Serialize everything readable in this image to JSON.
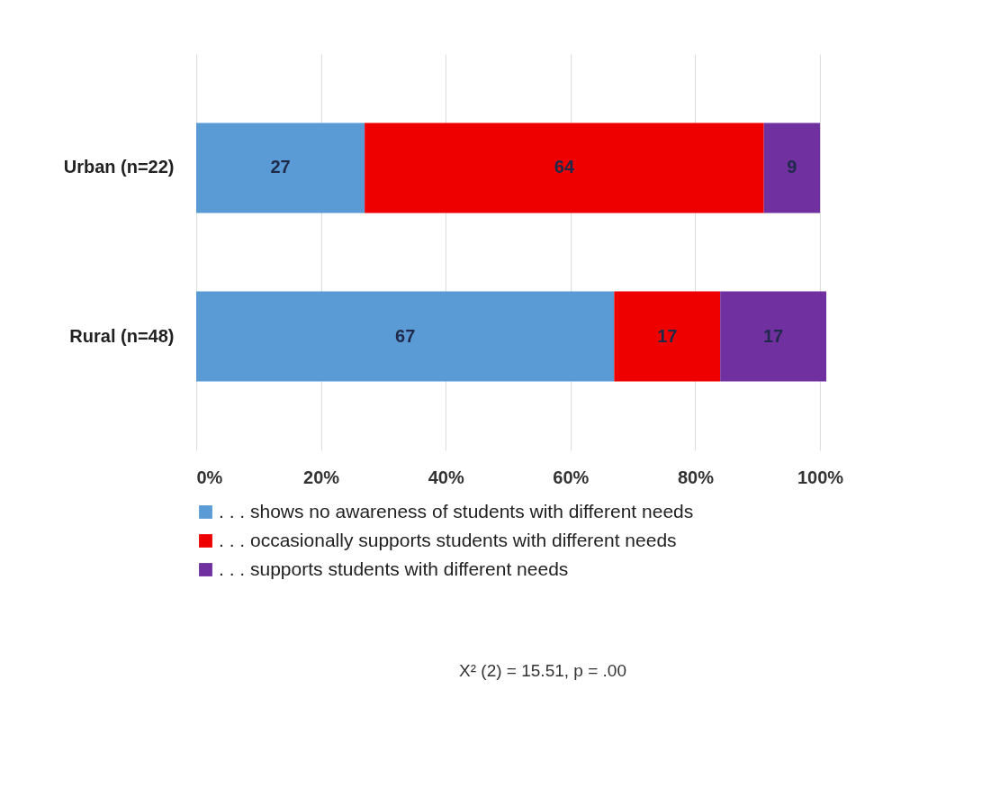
{
  "chart_data": {
    "type": "bar",
    "orientation": "horizontal",
    "stacked": true,
    "categories": [
      "Urban (n=22)",
      "Rural (n=48)"
    ],
    "series": [
      {
        "name": ". . . shows no awareness of students with different needs",
        "color": "#5b9bd5",
        "values": [
          27,
          67
        ]
      },
      {
        "name": ". . . occasionally supports students with different needs",
        "color": "#ee0000",
        "values": [
          64,
          17
        ]
      },
      {
        "name": ". . . supports students with different needs",
        "color": "#7030a0",
        "values": [
          9,
          17
        ]
      }
    ],
    "xlim": [
      0,
      101
    ],
    "xticks": [
      {
        "value": 0,
        "label": "0%"
      },
      {
        "value": 20,
        "label": "20%"
      },
      {
        "value": 40,
        "label": "40%"
      },
      {
        "value": 60,
        "label": "60%"
      },
      {
        "value": 80,
        "label": "80%"
      },
      {
        "value": 100,
        "label": "100%"
      }
    ],
    "data_labels": true,
    "grid": "x",
    "legend": "bottom",
    "annotations": [
      "X² (2) = 15.51, p = .00"
    ]
  }
}
